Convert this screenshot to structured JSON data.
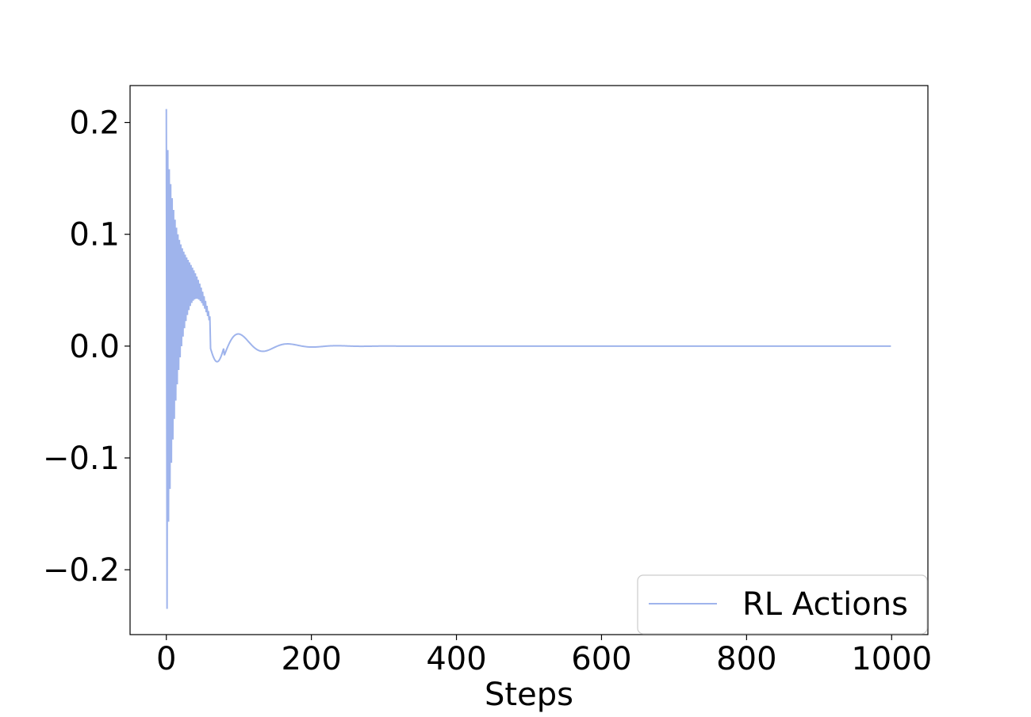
{
  "chart_data": {
    "type": "line",
    "title": "",
    "xlabel": "Steps",
    "ylabel": "",
    "xlim": [
      -50,
      1050
    ],
    "ylim": [
      -0.258,
      0.233
    ],
    "xticks": [
      0,
      200,
      400,
      600,
      800,
      1000
    ],
    "xtick_labels": [
      "0",
      "200",
      "400",
      "600",
      "800",
      "1000"
    ],
    "yticks": [
      -0.2,
      -0.1,
      0.0,
      0.1,
      0.2
    ],
    "ytick_labels": [
      "−0.2",
      "−0.1",
      "0.0",
      "0.1",
      "0.2"
    ],
    "grid": false,
    "legend": {
      "position": "bottom-right",
      "entries": [
        "RL Actions"
      ]
    },
    "series": [
      {
        "name": "RL Actions",
        "color": "#9fb4ec",
        "description_values": {
          "x_start": 0,
          "x_end": 999,
          "initial_high": 0.212,
          "initial_low": -0.235,
          "settled_value": 0.0
        }
      }
    ]
  }
}
